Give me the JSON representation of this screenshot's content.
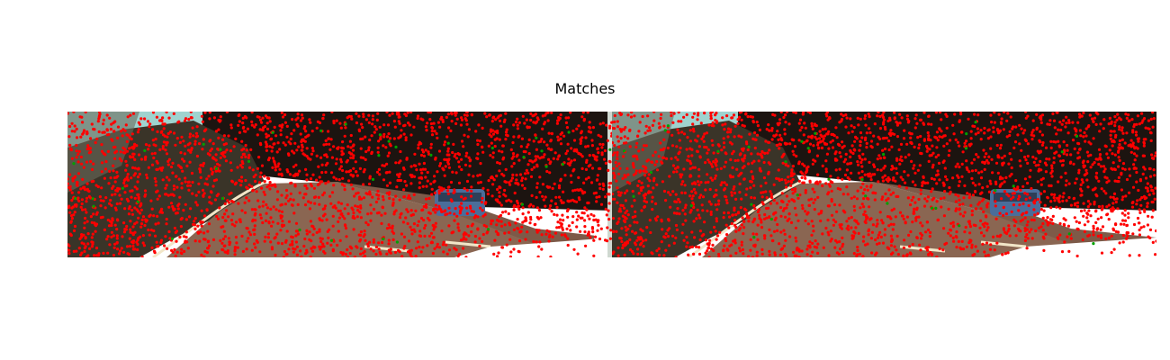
{
  "figure": {
    "title": "Matches"
  },
  "colors": {
    "keypoint": "#ff0000",
    "match": "#00a000",
    "sky": "#9fd3cf",
    "foliage_dark": "#1c1410",
    "foliage_mid": "#3a3428",
    "road": "#8a6652",
    "road_marking": "#f2e6c8",
    "car": "#4a6d9a",
    "background": "#ffffff"
  },
  "panels": [
    {
      "name": "left-image",
      "content": "road-scene-with-trees-and-car"
    },
    {
      "name": "right-image",
      "content": "road-scene-with-trees-and-car"
    }
  ]
}
